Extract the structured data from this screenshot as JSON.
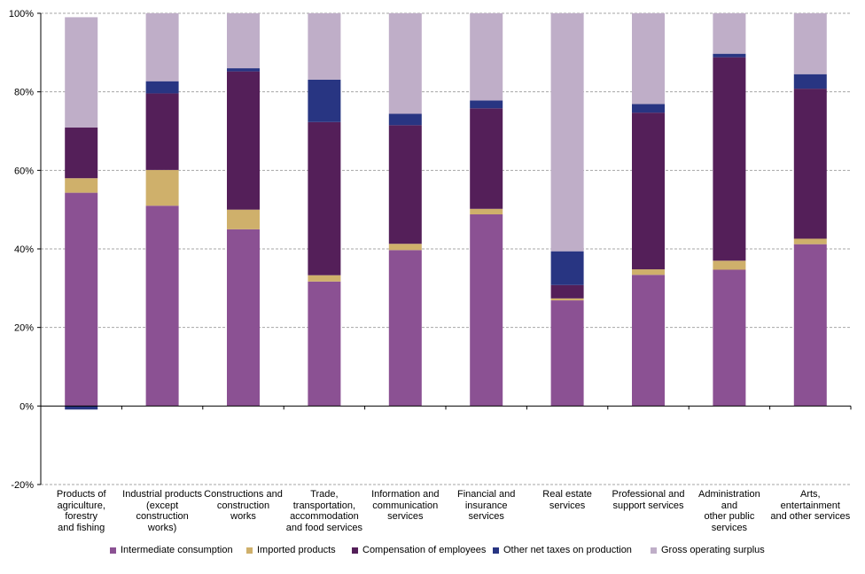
{
  "chart_data": {
    "type": "bar",
    "stacked": true,
    "ylim": [
      -20,
      100
    ],
    "yticks": [
      "-20%",
      "0%",
      "20%",
      "40%",
      "60%",
      "80%",
      "100%"
    ],
    "grid": true,
    "legend_position": "bottom",
    "categories": [
      "Products of agriculture, forestry and fishing",
      "Industrial products (except construction works)",
      "Constructions and construction works",
      "Trade, transportation, accommodation and food services",
      "Information and communication services",
      "Financial and insurance services",
      "Real estate services",
      "Professional and support services",
      "Administration and other public services",
      "Arts, entertainment and other services"
    ],
    "category_lines": [
      [
        "Products of",
        "agriculture, forestry",
        "and fishing"
      ],
      [
        "Industrial products",
        "(except",
        "construction",
        "works)"
      ],
      [
        "Constructions and",
        "construction works"
      ],
      [
        "Trade,",
        "transportation,",
        "accommodation",
        "and food services"
      ],
      [
        "Information and",
        "communication",
        "services"
      ],
      [
        "Financial and",
        "insurance services"
      ],
      [
        "Real estate",
        "services"
      ],
      [
        "Professional and",
        "support services"
      ],
      [
        "Administration and",
        "other public",
        "services"
      ],
      [
        "Arts, entertainment",
        "and other services"
      ]
    ],
    "series": [
      {
        "name": "Intermediate consumption",
        "color": "#8b5193",
        "values": [
          54.3,
          51.0,
          45.0,
          31.7,
          39.7,
          48.8,
          26.9,
          33.4,
          34.7,
          41.2
        ]
      },
      {
        "name": "Imported products",
        "color": "#cfb06b",
        "values": [
          3.7,
          9.1,
          5.0,
          1.6,
          1.6,
          1.4,
          0.5,
          1.4,
          2.3,
          1.4
        ]
      },
      {
        "name": "Compensation of employees",
        "color": "#541f59",
        "values": [
          12.9,
          19.5,
          35.2,
          39.0,
          30.2,
          25.6,
          3.4,
          39.9,
          51.8,
          38.2
        ]
      },
      {
        "name": "Other net taxes on production",
        "color": "#283582",
        "values": [
          -0.9,
          3.1,
          0.8,
          10.8,
          2.9,
          2.0,
          8.6,
          2.2,
          0.9,
          3.7
        ]
      },
      {
        "name": "Gross operating surplus",
        "color": "#bfaec8",
        "values": [
          28.1,
          17.3,
          14.0,
          16.9,
          25.6,
          22.2,
          60.6,
          23.1,
          10.3,
          15.5
        ]
      }
    ]
  }
}
